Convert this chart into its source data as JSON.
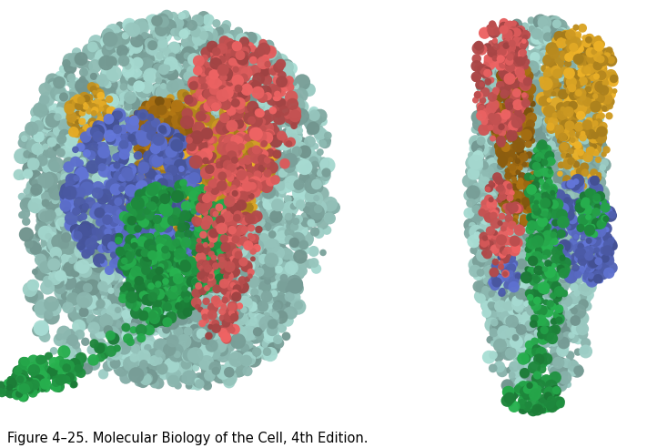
{
  "caption": "Figure 4–25. Molecular Biology of the Cell, 4th Edition.",
  "caption_fontsize": 10.5,
  "fig_width": 7.33,
  "fig_height": 4.92,
  "background_color": "#ffffff",
  "caption_color": "#000000",
  "teal": "#90bdb5",
  "red": "#cc5555",
  "gold": "#cc9922",
  "dark_gold": "#996611",
  "blue": "#5566bb",
  "green": "#229944"
}
